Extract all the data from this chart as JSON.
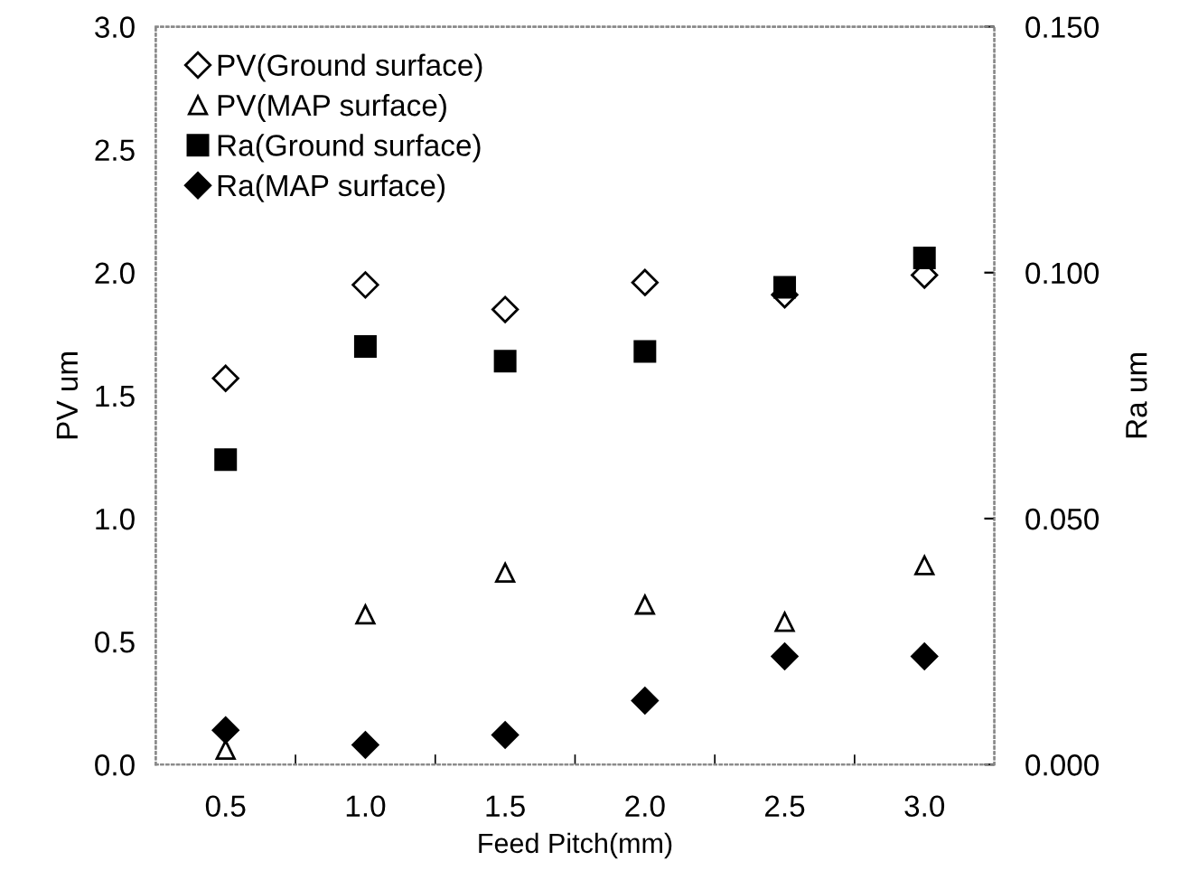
{
  "chart_data": {
    "type": "scatter",
    "xlabel": "Feed Pitch(mm)",
    "ylabel": "PV um",
    "y2label": "Ra um",
    "categories": [
      "0.5",
      "1.0",
      "1.5",
      "2.0",
      "2.5",
      "3.0"
    ],
    "ylim": [
      0,
      3
    ],
    "yticks": [
      {
        "value": 0,
        "label": "0.0"
      },
      {
        "value": 0.5,
        "label": "0.5"
      },
      {
        "value": 1,
        "label": "1.0"
      },
      {
        "value": 1.5,
        "label": "1.5"
      },
      {
        "value": 2,
        "label": "2.0"
      },
      {
        "value": 2.5,
        "label": "2.5"
      },
      {
        "value": 3,
        "label": "3.0"
      }
    ],
    "y2lim": [
      0,
      0.15
    ],
    "y2ticks": [
      {
        "value": 0,
        "label": "0.000"
      },
      {
        "value": 0.05,
        "label": "0.050"
      },
      {
        "value": 0.1,
        "label": "0.100"
      },
      {
        "value": 0.15,
        "label": "0.150"
      }
    ],
    "legend": "top left",
    "grid": false,
    "series": [
      {
        "name": "PV(Ground surface)",
        "color": "#000000",
        "marker": "diamond",
        "values": [
          1.57,
          1.95,
          1.85,
          1.96,
          1.91,
          1.99
        ]
      },
      {
        "name": "PV(MAP surface)",
        "color": "#000000",
        "marker": "triangle",
        "values": [
          0.06,
          0.61,
          0.78,
          0.65,
          0.58,
          0.81
        ]
      },
      {
        "name": "Ra(Ground surface)",
        "color": "#000000",
        "marker": "square",
        "axis": "y2",
        "values": [
          0.062,
          0.085,
          0.082,
          0.084,
          0.097,
          0.103
        ]
      },
      {
        "name": "Ra(MAP surface)",
        "color": "#000000",
        "marker": "diamond",
        "axis": "y2",
        "values": [
          0.007,
          0.004,
          0.006,
          0.013,
          0.022,
          0.022
        ]
      }
    ]
  }
}
